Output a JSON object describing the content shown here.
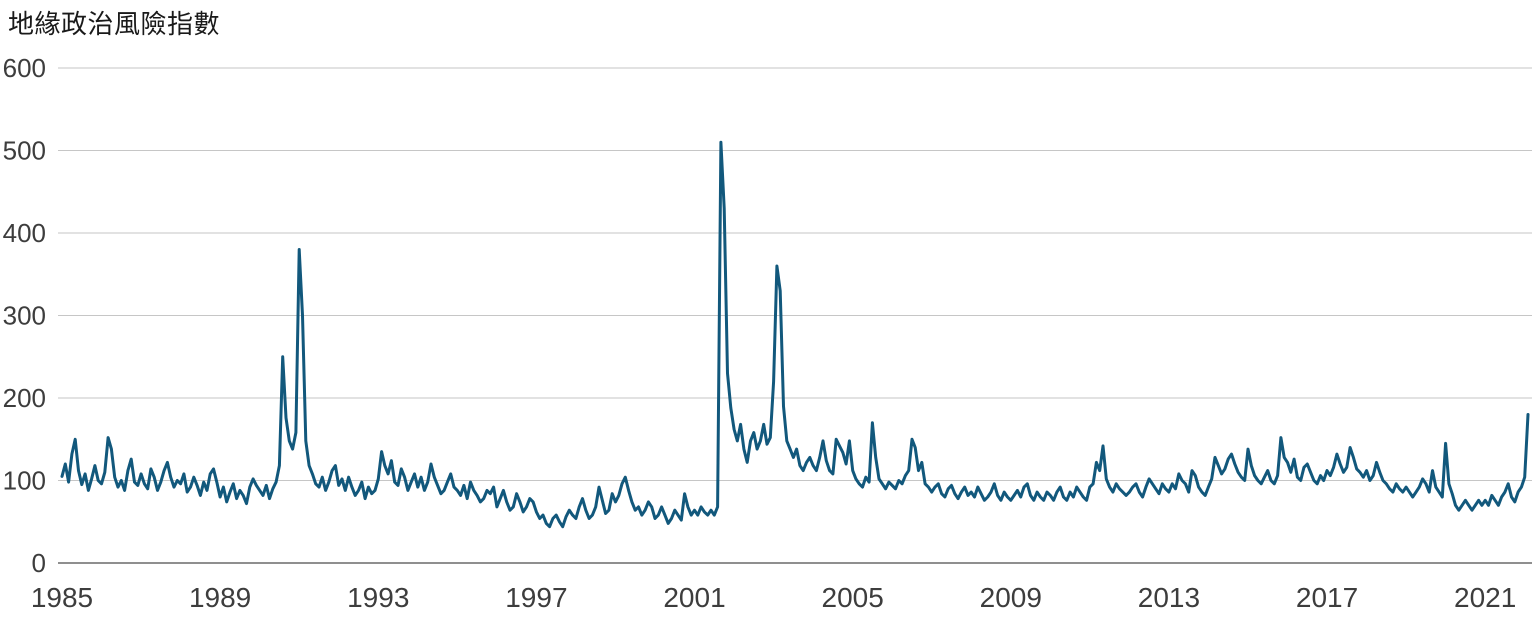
{
  "title": "地緣政治風險指數",
  "colors": {
    "line": "#12587c",
    "gridline": "#c6c6c6",
    "axis_line": "#8f8f8f",
    "text": "#3d3d3d",
    "background": "#ffffff"
  },
  "chart_data": {
    "type": "line",
    "title": "地緣政治風險指數",
    "xlabel": "",
    "ylabel": "",
    "ylim": [
      0,
      600
    ],
    "yticks": [
      0,
      100,
      200,
      300,
      400,
      500,
      600
    ],
    "xticks": [
      1985,
      1989,
      1993,
      1997,
      2001,
      2005,
      2009,
      2013,
      2017,
      2021
    ],
    "x_range": [
      1985,
      2022.1
    ],
    "grid": "horizontal",
    "legend_position": "none",
    "line_color": "#12587c",
    "series": [
      {
        "name": "地緣政治風險指數",
        "start_year": 1985,
        "frequency": "monthly",
        "values": [
          105,
          120,
          98,
          132,
          150,
          112,
          95,
          108,
          88,
          102,
          118,
          100,
          96,
          110,
          152,
          138,
          104,
          92,
          100,
          88,
          112,
          126,
          98,
          94,
          108,
          96,
          90,
          114,
          104,
          88,
          98,
          112,
          122,
          104,
          92,
          100,
          96,
          108,
          86,
          92,
          104,
          94,
          82,
          98,
          88,
          108,
          114,
          98,
          80,
          92,
          74,
          86,
          96,
          78,
          88,
          82,
          72,
          92,
          102,
          94,
          88,
          82,
          94,
          78,
          90,
          98,
          118,
          250,
          176,
          148,
          138,
          158,
          380,
          300,
          148,
          118,
          108,
          96,
          92,
          104,
          88,
          98,
          112,
          118,
          94,
          102,
          88,
          104,
          92,
          82,
          88,
          98,
          78,
          92,
          84,
          88,
          102,
          135,
          118,
          108,
          124,
          98,
          94,
          114,
          104,
          88,
          98,
          108,
          92,
          104,
          88,
          98,
          120,
          104,
          94,
          84,
          88,
          98,
          108,
          92,
          88,
          82,
          94,
          78,
          98,
          88,
          82,
          74,
          78,
          88,
          84,
          92,
          68,
          78,
          88,
          74,
          64,
          68,
          84,
          74,
          62,
          68,
          78,
          74,
          62,
          54,
          58,
          48,
          44,
          54,
          58,
          50,
          44,
          56,
          64,
          58,
          54,
          68,
          78,
          64,
          54,
          58,
          68,
          92,
          76,
          60,
          64,
          84,
          74,
          82,
          96,
          104,
          88,
          74,
          64,
          68,
          58,
          64,
          74,
          68,
          54,
          58,
          68,
          58,
          48,
          54,
          64,
          58,
          52,
          84,
          68,
          58,
          64,
          58,
          68,
          62,
          58,
          64,
          58,
          68,
          510,
          430,
          230,
          188,
          162,
          148,
          168,
          138,
          122,
          148,
          158,
          138,
          148,
          168,
          144,
          152,
          220,
          360,
          330,
          190,
          148,
          138,
          128,
          138,
          118,
          112,
          122,
          128,
          118,
          112,
          128,
          148,
          124,
          112,
          108,
          150,
          142,
          134,
          120,
          148,
          112,
          102,
          96,
          92,
          104,
          98,
          170,
          128,
          102,
          96,
          90,
          98,
          94,
          90,
          100,
          96,
          106,
          112,
          150,
          140,
          112,
          122,
          96,
          92,
          86,
          92,
          96,
          84,
          80,
          90,
          94,
          84,
          78,
          86,
          92,
          82,
          86,
          80,
          92,
          84,
          76,
          80,
          86,
          96,
          82,
          76,
          86,
          80,
          76,
          82,
          88,
          80,
          92,
          96,
          82,
          76,
          86,
          80,
          76,
          86,
          82,
          76,
          86,
          92,
          80,
          76,
          86,
          80,
          92,
          86,
          80,
          76,
          92,
          96,
          122,
          112,
          142,
          102,
          92,
          86,
          96,
          90,
          86,
          82,
          86,
          92,
          96,
          86,
          80,
          92,
          102,
          96,
          90,
          84,
          96,
          90,
          86,
          96,
          90,
          108,
          100,
          96,
          86,
          112,
          106,
          92,
          86,
          82,
          92,
          102,
          128,
          118,
          108,
          114,
          126,
          132,
          120,
          110,
          104,
          100,
          138,
          118,
          106,
          100,
          96,
          104,
          112,
          100,
          96,
          106,
          152,
          128,
          122,
          110,
          126,
          104,
          100,
          116,
          120,
          110,
          100,
          96,
          106,
          100,
          112,
          106,
          116,
          132,
          120,
          110,
          116,
          140,
          128,
          114,
          110,
          104,
          112,
          100,
          106,
          122,
          110,
          100,
          96,
          90,
          86,
          96,
          90,
          86,
          92,
          86,
          80,
          86,
          92,
          102,
          96,
          86,
          112,
          92,
          86,
          80,
          145,
          96,
          84,
          70,
          64,
          70,
          76,
          70,
          64,
          70,
          76,
          70,
          76,
          70,
          82,
          76,
          70,
          80,
          86,
          96,
          80,
          74,
          86,
          92,
          104,
          180
        ]
      }
    ]
  }
}
